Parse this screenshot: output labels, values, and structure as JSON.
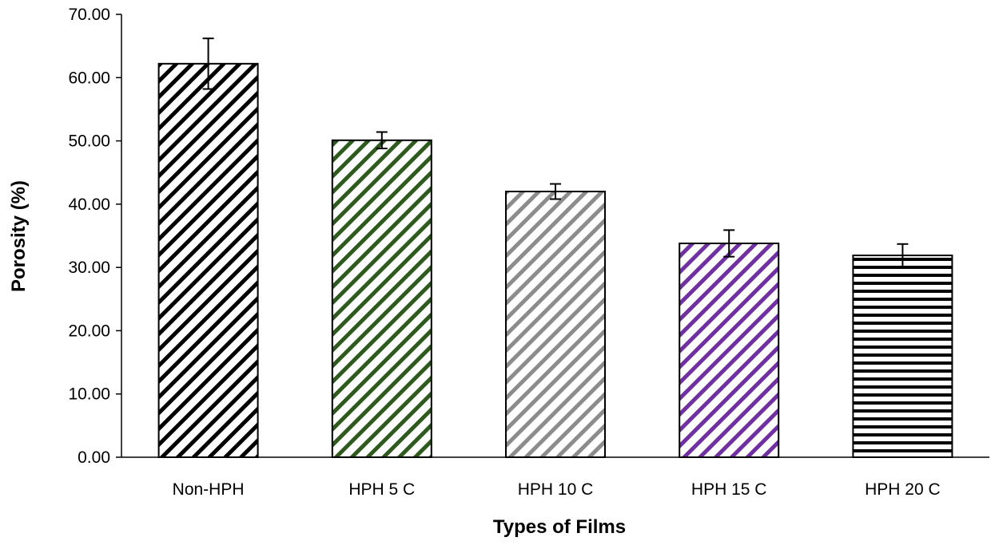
{
  "chart_data": {
    "type": "bar",
    "title": "",
    "xlabel": "Types of Films",
    "ylabel": "Porosity (%)",
    "ylim": [
      0,
      70
    ],
    "yticks": [
      "0.00",
      "10.00",
      "20.00",
      "30.00",
      "40.00",
      "50.00",
      "60.00",
      "70.00"
    ],
    "categories": [
      "Non-HPH",
      "HPH 5 C",
      "HPH 10 C",
      "HPH 15 C",
      "HPH 20 C"
    ],
    "values": [
      62.2,
      50.1,
      42.0,
      33.8,
      31.9
    ],
    "errors": [
      4.0,
      1.3,
      1.2,
      2.1,
      1.8
    ],
    "bar_colors": [
      "#000000",
      "#2f5a1e",
      "#8c8c8c",
      "#7030a0",
      "#000000"
    ],
    "bar_patterns": [
      "diagonal",
      "diagonal",
      "diagonal",
      "diagonal",
      "horizontal"
    ],
    "grid": false,
    "legend": "none"
  }
}
